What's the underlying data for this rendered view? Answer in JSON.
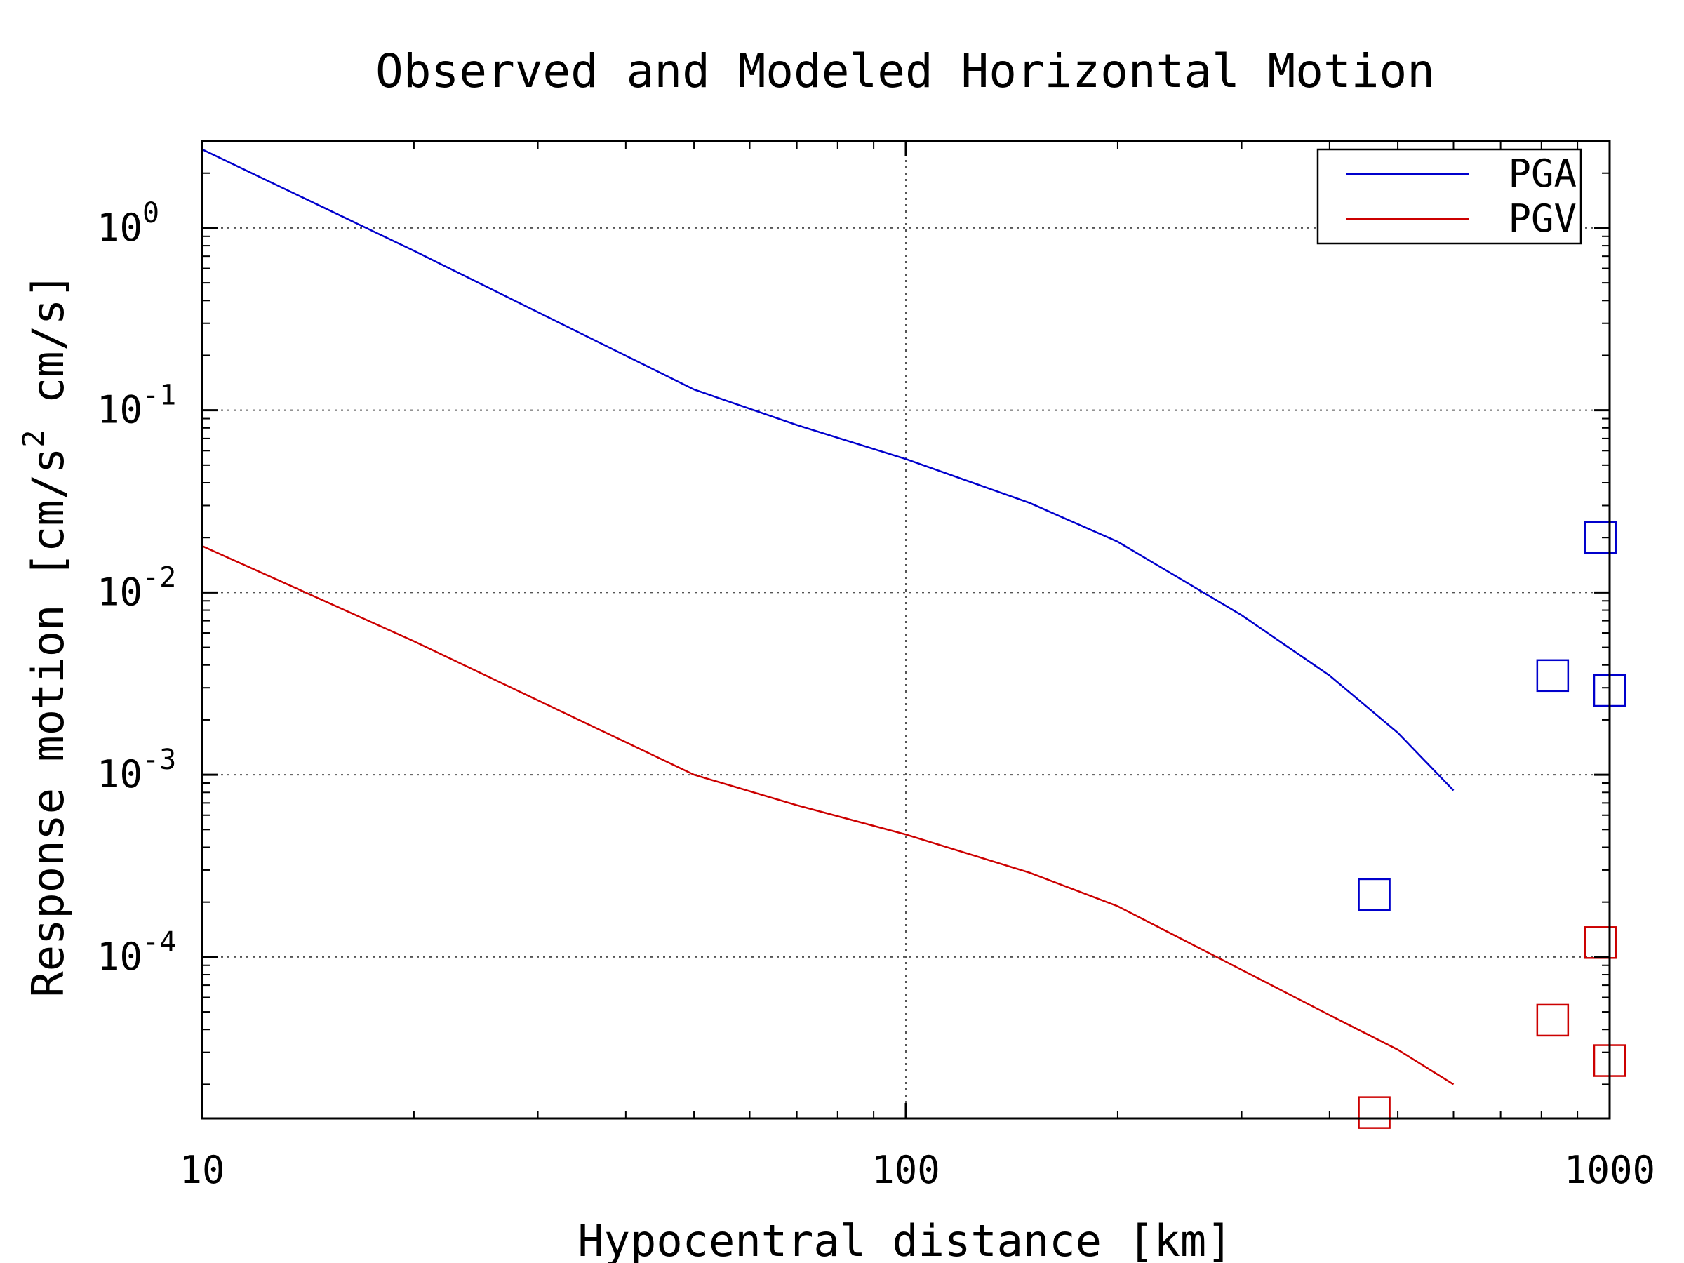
{
  "chart_data": {
    "type": "line",
    "title": "Observed and Modeled Horizontal Motion",
    "xlabel": "Hypocentral distance [km]",
    "ylabel": {
      "prefix": "Response motion [cm/s",
      "sup": "2",
      "suffix": " cm/s]"
    },
    "xscale": "log",
    "yscale": "log",
    "xlim": [
      10,
      1000
    ],
    "ylim": [
      1.3e-05,
      3
    ],
    "x_ticks": [
      {
        "value": 10,
        "label": "10"
      },
      {
        "value": 100,
        "label": "100"
      },
      {
        "value": 1000,
        "label": "1000"
      }
    ],
    "y_ticks": [
      {
        "value": 1,
        "base": "10",
        "exp": "0"
      },
      {
        "value": 0.1,
        "base": "10",
        "exp": "-1"
      },
      {
        "value": 0.01,
        "base": "10",
        "exp": "-2"
      },
      {
        "value": 0.001,
        "base": "10",
        "exp": "-3"
      },
      {
        "value": 0.0001,
        "base": "10",
        "exp": "-4"
      }
    ],
    "grid": true,
    "legend_position": "top-right",
    "series": [
      {
        "name": "PGA",
        "kind": "line",
        "color": "#0000cc",
        "x": [
          10,
          20,
          50,
          70,
          100,
          150,
          200,
          300,
          400,
          500,
          600
        ],
        "y": [
          2.7,
          0.75,
          0.13,
          0.083,
          0.054,
          0.031,
          0.019,
          0.0075,
          0.0035,
          0.0017,
          0.00082
        ]
      },
      {
        "name": "PGV",
        "kind": "line",
        "color": "#cc0000",
        "x": [
          10,
          20,
          50,
          70,
          100,
          150,
          200,
          300,
          400,
          500,
          600
        ],
        "y": [
          0.018,
          0.0054,
          0.001,
          0.00068,
          0.00047,
          0.00029,
          0.00019,
          8.5e-05,
          4.8e-05,
          3.1e-05,
          2e-05
        ]
      },
      {
        "name": "",
        "kind": "markers",
        "marker": "square",
        "color": "#0000cc",
        "x": [
          463,
          830,
          970,
          1000
        ],
        "y": [
          0.00022,
          0.0035,
          0.02,
          0.0029
        ]
      },
      {
        "name": "",
        "kind": "markers",
        "marker": "square",
        "color": "#cc0000",
        "x": [
          463,
          830,
          970,
          1000
        ],
        "y": [
          1.4e-05,
          4.5e-05,
          0.00012,
          2.7e-05
        ]
      }
    ]
  }
}
